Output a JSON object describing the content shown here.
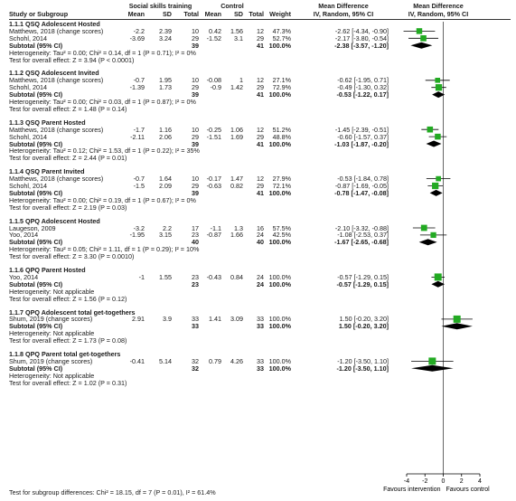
{
  "chart_data": {
    "type": "forest",
    "header": {
      "group1": "Social skills training",
      "group2": "Control",
      "md_main": "Mean Difference",
      "md_sub": "IV, Random, 95% CI",
      "plot_main": "Mean Difference",
      "plot_sub": "IV, Random, 95% CI",
      "cols": {
        "study": "Study or Subgroup",
        "mean1": "Mean",
        "sd1": "SD",
        "total1": "Total",
        "mean2": "Mean",
        "sd2": "SD",
        "total2": "Total",
        "weight": "Weight"
      }
    },
    "axis": {
      "min": -4,
      "max": 4,
      "ticks": [
        "-4",
        "-2",
        "0",
        "2",
        "4"
      ],
      "label_left": "Favours intervention",
      "label_right": "Favours control"
    },
    "subgroups": [
      {
        "title": "1.1.1 QSQ Adolescent Hosted",
        "studies": [
          {
            "name": "Matthews, 2018 (change scores)",
            "mean1": "-2.2",
            "sd1": "2.39",
            "n1": "10",
            "mean2": "0.42",
            "sd2": "1.56",
            "n2": "12",
            "weight": "47.3%",
            "md_text": "-2.62 [-4.34, -0.90]",
            "md": -2.62,
            "lo": -4.34,
            "hi": -0.9
          },
          {
            "name": "Schohl, 2014",
            "mean1": "-3.69",
            "sd1": "3.24",
            "n1": "29",
            "mean2": "-1.52",
            "sd2": "3.1",
            "n2": "29",
            "weight": "52.7%",
            "md_text": "-2.17 [-3.80, -0.54]",
            "md": -2.17,
            "lo": -3.8,
            "hi": -0.54
          }
        ],
        "subtotal": {
          "label": "Subtotal (95% CI)",
          "n1": "39",
          "n2": "41",
          "weight": "100.0%",
          "md_text": "-2.38 [-3.57, -1.20]",
          "md": -2.38,
          "lo": -3.57,
          "hi": -1.2
        },
        "heterogeneity": "Heterogeneity: Tau² = 0.00; Chi² = 0.14, df = 1 (P = 0.71); I² = 0%",
        "overall": "Test for overall effect: Z = 3.94 (P < 0.0001)"
      },
      {
        "title": "1.1.2 QSQ Adolescent Invited",
        "studies": [
          {
            "name": "Matthews, 2018 (change scores)",
            "mean1": "-0.7",
            "sd1": "1.95",
            "n1": "10",
            "mean2": "-0.08",
            "sd2": "1",
            "n2": "12",
            "weight": "27.1%",
            "md_text": "-0.62 [-1.95, 0.71]",
            "md": -0.62,
            "lo": -1.95,
            "hi": 0.71
          },
          {
            "name": "Schohl, 2014",
            "mean1": "-1.39",
            "sd1": "1.73",
            "n1": "29",
            "mean2": "-0.9",
            "sd2": "1.42",
            "n2": "29",
            "weight": "72.9%",
            "md_text": "-0.49 [-1.30, 0.32]",
            "md": -0.49,
            "lo": -1.3,
            "hi": 0.32
          }
        ],
        "subtotal": {
          "label": "Subtotal (95% CI)",
          "n1": "39",
          "n2": "41",
          "weight": "100.0%",
          "md_text": "-0.53 [-1.22, 0.17]",
          "md": -0.53,
          "lo": -1.22,
          "hi": 0.17
        },
        "heterogeneity": "Heterogeneity: Tau² = 0.00; Chi² = 0.03, df = 1 (P = 0.87); I² = 0%",
        "overall": "Test for overall effect: Z = 1.48 (P = 0.14)"
      },
      {
        "title": "1.1.3 QSQ Parent Hosted",
        "studies": [
          {
            "name": "Matthews, 2018 (change scores)",
            "mean1": "-1.7",
            "sd1": "1.16",
            "n1": "10",
            "mean2": "-0.25",
            "sd2": "1.06",
            "n2": "12",
            "weight": "51.2%",
            "md_text": "-1.45 [-2.39, -0.51]",
            "md": -1.45,
            "lo": -2.39,
            "hi": -0.51
          },
          {
            "name": "Schohl, 2014",
            "mean1": "-2.11",
            "sd1": "2.06",
            "n1": "29",
            "mean2": "-1.51",
            "sd2": "1.69",
            "n2": "29",
            "weight": "48.8%",
            "md_text": "-0.60 [-1.57, 0.37]",
            "md": -0.6,
            "lo": -1.57,
            "hi": 0.37
          }
        ],
        "subtotal": {
          "label": "Subtotal (95% CI)",
          "n1": "39",
          "n2": "41",
          "weight": "100.0%",
          "md_text": "-1.03 [-1.87, -0.20]",
          "md": -1.03,
          "lo": -1.87,
          "hi": -0.2
        },
        "heterogeneity": "Heterogeneity: Tau² = 0.12; Chi² = 1.53, df = 1 (P = 0.22); I² = 35%",
        "overall": "Test for overall effect: Z = 2.44 (P = 0.01)"
      },
      {
        "title": "1.1.4 QSQ Parent Invited",
        "studies": [
          {
            "name": "Matthews, 2018 (change scores)",
            "mean1": "-0.7",
            "sd1": "1.64",
            "n1": "10",
            "mean2": "-0.17",
            "sd2": "1.47",
            "n2": "12",
            "weight": "27.9%",
            "md_text": "-0.53 [-1.84, 0.78]",
            "md": -0.53,
            "lo": -1.84,
            "hi": 0.78
          },
          {
            "name": "Schohl, 2014",
            "mean1": "-1.5",
            "sd1": "2.09",
            "n1": "29",
            "mean2": "-0.63",
            "sd2": "0.82",
            "n2": "29",
            "weight": "72.1%",
            "md_text": "-0.87 [-1.69, -0.05]",
            "md": -0.87,
            "lo": -1.69,
            "hi": -0.05
          }
        ],
        "subtotal": {
          "label": "Subtotal (95% CI)",
          "n1": "39",
          "n2": "41",
          "weight": "100.0%",
          "md_text": "-0.78 [-1.47, -0.08]",
          "md": -0.78,
          "lo": -1.47,
          "hi": -0.08
        },
        "heterogeneity": "Heterogeneity: Tau² = 0.00; Chi² = 0.19, df = 1 (P = 0.67); I² = 0%",
        "overall": "Test for overall effect: Z = 2.19 (P = 0.03)"
      },
      {
        "title": "1.1.5 QPQ Adolescent Hosted",
        "studies": [
          {
            "name": "Laugeson, 2009",
            "mean1": "-3.2",
            "sd1": "2.2",
            "n1": "17",
            "mean2": "-1.1",
            "sd2": "1.3",
            "n2": "16",
            "weight": "57.5%",
            "md_text": "-2.10 [-3.32, -0.88]",
            "md": -2.1,
            "lo": -3.32,
            "hi": -0.88
          },
          {
            "name": "Yoo, 2014",
            "mean1": "-1.95",
            "sd1": "3.15",
            "n1": "23",
            "mean2": "-0.87",
            "sd2": "1.66",
            "n2": "24",
            "weight": "42.5%",
            "md_text": "-1.08 [-2.53, 0.37]",
            "md": -1.08,
            "lo": -2.53,
            "hi": 0.37
          }
        ],
        "subtotal": {
          "label": "Subtotal (95% CI)",
          "n1": "40",
          "n2": "40",
          "weight": "100.0%",
          "md_text": "-1.67 [-2.65, -0.68]",
          "md": -1.67,
          "lo": -2.65,
          "hi": -0.68
        },
        "heterogeneity": "Heterogeneity: Tau² = 0.05; Chi² = 1.11, df = 1 (P = 0.29); I² = 10%",
        "overall": "Test for overall effect: Z = 3.30 (P = 0.0010)"
      },
      {
        "title": "1.1.6 QPQ Parent Hosted",
        "studies": [
          {
            "name": "Yoo, 2014",
            "mean1": "-1",
            "sd1": "1.55",
            "n1": "23",
            "mean2": "-0.43",
            "sd2": "0.84",
            "n2": "24",
            "weight": "100.0%",
            "md_text": "-0.57 [-1.29, 0.15]",
            "md": -0.57,
            "lo": -1.29,
            "hi": 0.15
          }
        ],
        "subtotal": {
          "label": "Subtotal (95% CI)",
          "n1": "23",
          "n2": "24",
          "weight": "100.0%",
          "md_text": "-0.57 [-1.29, 0.15]",
          "md": -0.57,
          "lo": -1.29,
          "hi": 0.15
        },
        "heterogeneity": "Heterogeneity: Not applicable",
        "overall": "Test for overall effect: Z = 1.56 (P = 0.12)"
      },
      {
        "title": "1.1.7 QPQ Adolescent total get-togethers",
        "studies": [
          {
            "name": "Shum, 2019 (change scores)",
            "mean1": "2.91",
            "sd1": "3.9",
            "n1": "33",
            "mean2": "1.41",
            "sd2": "3.09",
            "n2": "33",
            "weight": "100.0%",
            "md_text": "1.50 [-0.20, 3.20]",
            "md": 1.5,
            "lo": -0.2,
            "hi": 3.2
          }
        ],
        "subtotal": {
          "label": "Subtotal (95% CI)",
          "n1": "33",
          "n2": "33",
          "weight": "100.0%",
          "md_text": "1.50 [-0.20, 3.20]",
          "md": 1.5,
          "lo": -0.2,
          "hi": 3.2
        },
        "heterogeneity": "Heterogeneity: Not applicable",
        "overall": "Test for overall effect: Z = 1.73 (P = 0.08)"
      },
      {
        "title": "1.1.8 QPQ Parent total get-togethers",
        "studies": [
          {
            "name": "Shum, 2019 (change scores)",
            "mean1": "-0.41",
            "sd1": "5.14",
            "n1": "32",
            "mean2": "0.79",
            "sd2": "4.26",
            "n2": "33",
            "weight": "100.0%",
            "md_text": "-1.20 [-3.50, 1.10]",
            "md": -1.2,
            "lo": -3.5,
            "hi": 1.1
          }
        ],
        "subtotal": {
          "label": "Subtotal (95% CI)",
          "n1": "32",
          "n2": "33",
          "weight": "100.0%",
          "md_text": "-1.20 [-3.50, 1.10]",
          "md": -1.2,
          "lo": -3.5,
          "hi": 1.1
        },
        "heterogeneity": "Heterogeneity: Not applicable",
        "overall": "Test for overall effect: Z = 1.02 (P = 0.31)"
      }
    ],
    "footer": "Test for subgroup differences: Chi² = 18.15, df = 7 (P = 0.01), I² = 61.4%",
    "colors": {
      "square": "#22aa22",
      "diamond": "#000000",
      "line": "#000000"
    }
  }
}
